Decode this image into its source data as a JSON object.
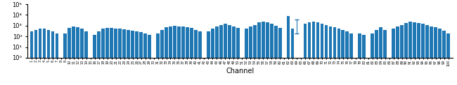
{
  "chart_data": {
    "type": "bar",
    "title": "",
    "x_label": "Channel",
    "y_label": "",
    "x": [
      1,
      2,
      3,
      4,
      5,
      6,
      7,
      9,
      10,
      11,
      12,
      13,
      14,
      16,
      17,
      18,
      19,
      20,
      21,
      22,
      23,
      24,
      25,
      26,
      27,
      28,
      29,
      31,
      32,
      33,
      34,
      35,
      36,
      37,
      38,
      39,
      40,
      41,
      43,
      44,
      45,
      46,
      47,
      48,
      49,
      50,
      52,
      53,
      54,
      55,
      56,
      57,
      58,
      59,
      60,
      62,
      63,
      66,
      67,
      68,
      69,
      70,
      71,
      72,
      73,
      74,
      75,
      76,
      77,
      79,
      80,
      82,
      83,
      84,
      85,
      87,
      88,
      89,
      90,
      91,
      92,
      93,
      94,
      95,
      96,
      97,
      98,
      99,
      100
    ],
    "values": [
      300,
      400,
      500,
      500,
      400,
      300,
      200,
      200,
      600,
      800,
      700,
      500,
      300,
      150,
      300,
      500,
      600,
      600,
      550,
      500,
      450,
      400,
      350,
      300,
      250,
      200,
      150,
      200,
      400,
      700,
      900,
      1000,
      900,
      800,
      700,
      600,
      400,
      300,
      300,
      500,
      800,
      1200,
      1500,
      1200,
      900,
      600,
      500,
      800,
      1200,
      2000,
      2500,
      2000,
      1500,
      1000,
      600,
      8000,
      500,
      1500,
      2000,
      2500,
      2000,
      1500,
      1200,
      900,
      700,
      500,
      400,
      300,
      200,
      200,
      150,
      200,
      400,
      700,
      400,
      500,
      800,
      1200,
      1800,
      2500,
      2200,
      1800,
      1500,
      1200,
      900,
      700,
      500,
      350,
      200
    ],
    "error_bar": {
      "x": 64,
      "y": 2000,
      "yerr": 1800
    },
    "log": "y",
    "xlim": [
      0,
      101
    ],
    "xticks": [
      1,
      2,
      3,
      4,
      5,
      6,
      7,
      8,
      9,
      10,
      11,
      12,
      13,
      14,
      15,
      16,
      17,
      18,
      19,
      20,
      21,
      22,
      23,
      24,
      25,
      26,
      27,
      28,
      29,
      30,
      31,
      32,
      33,
      34,
      35,
      36,
      37,
      38,
      39,
      40,
      41,
      42,
      43,
      44,
      45,
      46,
      47,
      48,
      49,
      50,
      51,
      52,
      53,
      54,
      55,
      56,
      57,
      58,
      59,
      60,
      61,
      62,
      63,
      64,
      65,
      66,
      67,
      68,
      69,
      70,
      71,
      72,
      73,
      74,
      75,
      76,
      77,
      78,
      79,
      80,
      81,
      82,
      83,
      84,
      85,
      86,
      87,
      88,
      89,
      90,
      91,
      92,
      93,
      94,
      95,
      96,
      97,
      98,
      99,
      100
    ],
    "ylim": [
      1,
      100000
    ],
    "yticks": [
      {
        "value": 1,
        "label": "10⁰"
      },
      {
        "value": 10,
        "label": "10¹"
      },
      {
        "value": 100,
        "label": "10²"
      },
      {
        "value": 1000,
        "label": "10³"
      },
      {
        "value": 10000,
        "label": "10⁴"
      },
      {
        "value": 100000,
        "label": "10⁵"
      }
    ],
    "grid": false
  }
}
